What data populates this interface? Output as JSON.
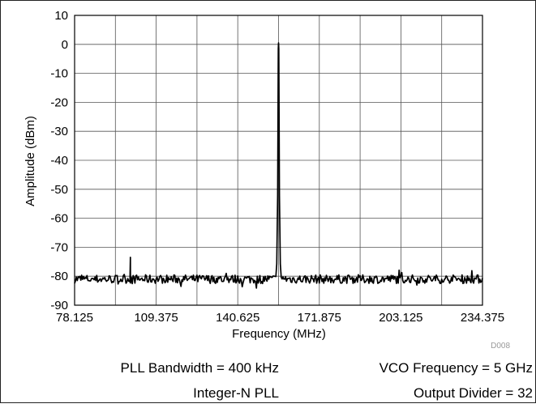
{
  "chart_data": {
    "type": "line",
    "title": "",
    "xlabel": "Frequency (MHz)",
    "ylabel": "Amplitude (dBm)",
    "xlim": [
      78.125,
      234.375
    ],
    "ylim": [
      -90,
      10
    ],
    "x_ticks": [
      "78.125",
      "109.375",
      "140.625",
      "171.875",
      "203.125",
      "234.375"
    ],
    "y_ticks": [
      "10",
      "0",
      "-10",
      "-20",
      "-30",
      "-40",
      "-50",
      "-60",
      "-70",
      "-80",
      "-90"
    ],
    "grid": true,
    "noise_floor_dbm": -81,
    "series": [
      {
        "color": "#000000",
        "peaks": [
          {
            "x": 156.25,
            "y": 0.5
          },
          {
            "x": 99.5,
            "y": -73.5
          }
        ]
      }
    ],
    "figure_code": "D008"
  },
  "notes": {
    "left_line1": "PLL Bandwidth = 400 kHz",
    "left_line2": "Integer-N PLL",
    "right_line1": "VCO Frequency = 5 GHz",
    "right_line2": "Output Divider = 32"
  }
}
